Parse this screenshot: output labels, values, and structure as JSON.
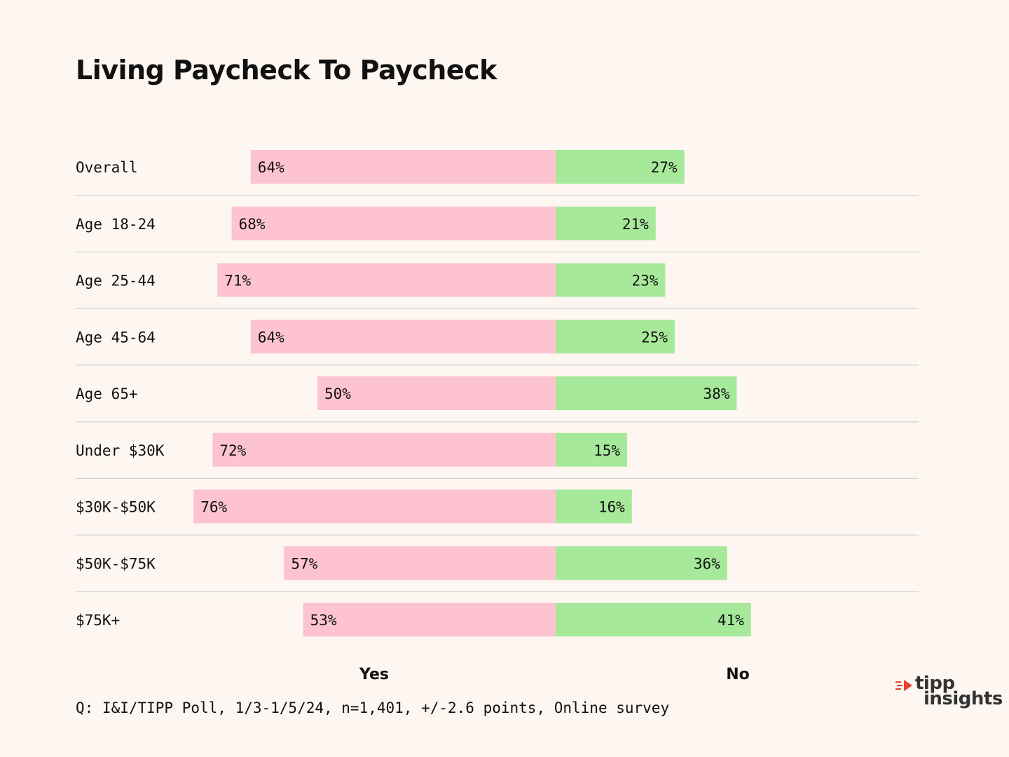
{
  "title": "Living Paycheck To Paycheck",
  "footnote": "Q:  I&I/TIPP Poll, 1/3-1/5/24, n=1,401, +/-2.6 points, Online survey",
  "logo": {
    "line1": "tipp",
    "line2": "insights"
  },
  "colors": {
    "yes": "#fdc3d0",
    "no": "#a6e99a",
    "divider": "#d6d1cd",
    "background": "#fdf6f1",
    "logo_accent": "#e8412c"
  },
  "chart_data": {
    "type": "bar",
    "orientation": "horizontal-diverging",
    "title": "Living Paycheck To Paycheck",
    "categories": [
      "Overall",
      "Age 18-24",
      "Age 25-44",
      "Age 45-64",
      "Age 65+",
      "Under $30K",
      "$30K-$50K",
      "$50K-$75K",
      "$75K+"
    ],
    "series": [
      {
        "name": "Yes",
        "values": [
          64,
          68,
          71,
          64,
          50,
          72,
          76,
          57,
          53
        ]
      },
      {
        "name": "No",
        "values": [
          27,
          21,
          23,
          25,
          38,
          15,
          16,
          36,
          41
        ]
      }
    ],
    "value_suffix": "%",
    "xlabel_yes": "Yes",
    "xlabel_no": "No"
  }
}
